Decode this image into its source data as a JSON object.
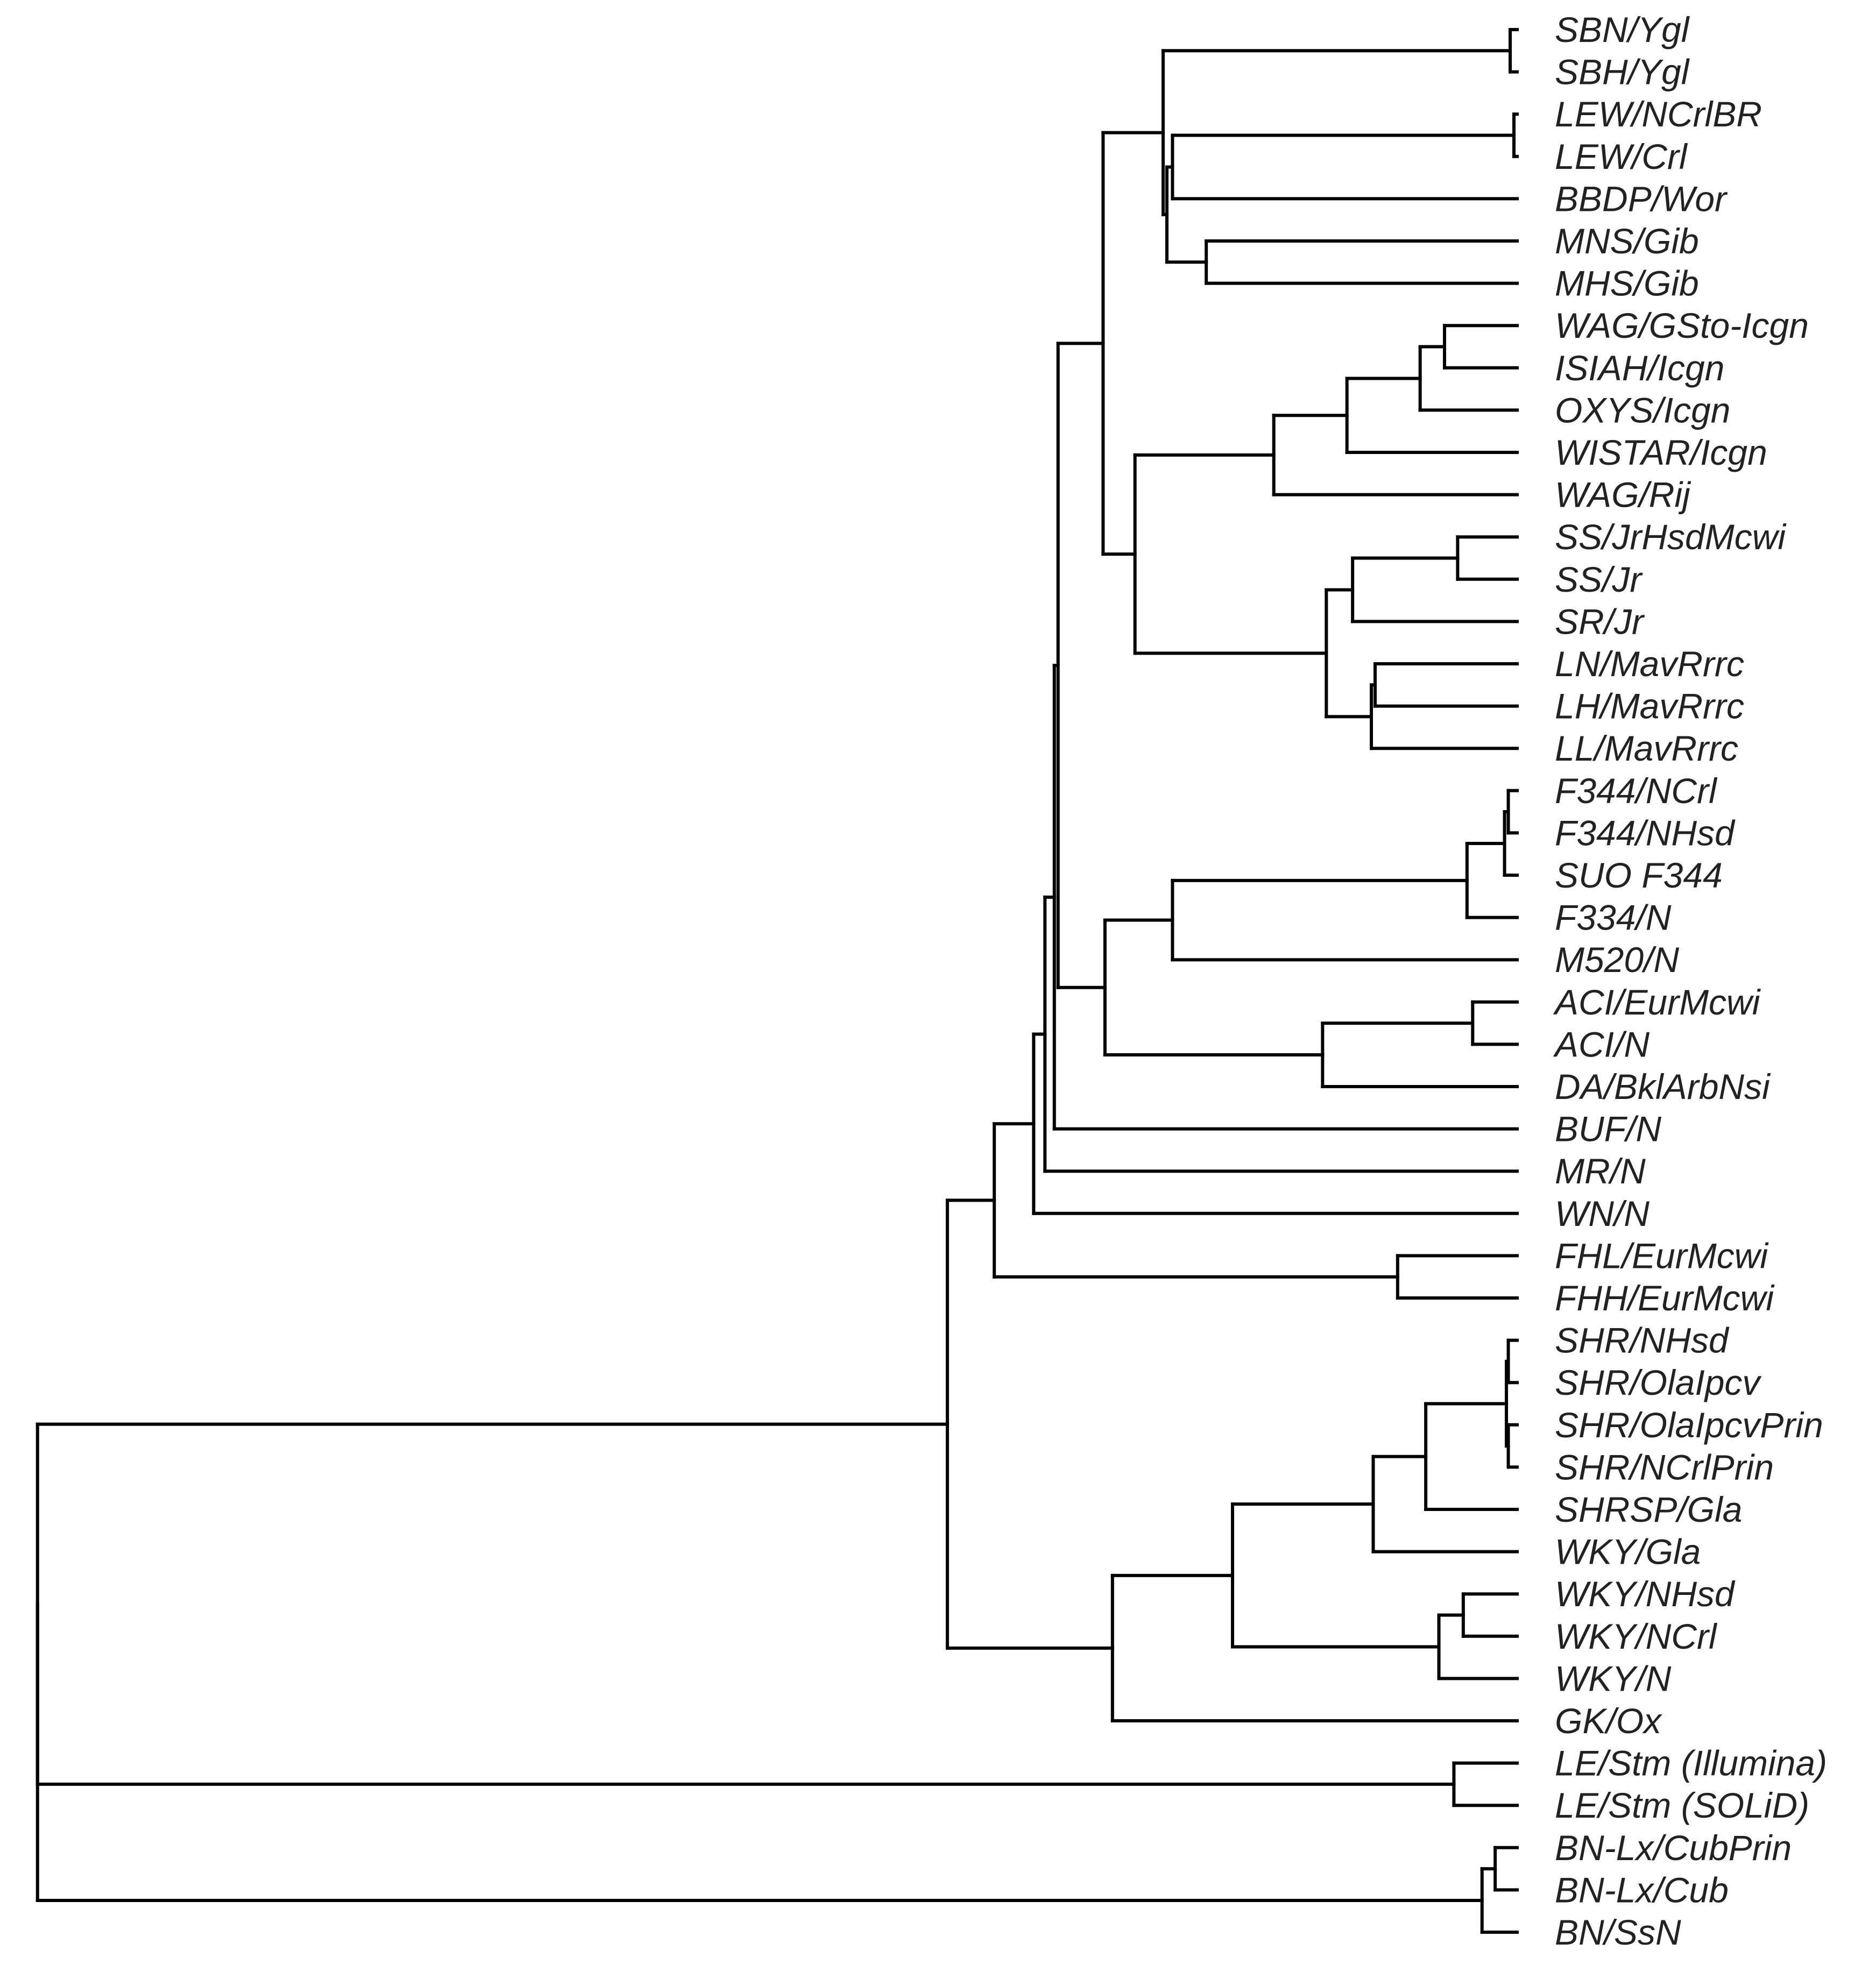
{
  "figure": {
    "type": "dendrogram",
    "orientation": "root-left, leaves-right"
  },
  "leaves": [
    "SBN/Ygl",
    "SBH/Ygl",
    "LEW/NCrlBR",
    "LEW/Crl",
    "BBDP/Wor",
    "MNS/Gib",
    "MHS/Gib",
    "WAG/GSto-Icgn",
    "ISIAH/Icgn",
    "OXYS/Icgn",
    "WISTAR/Icgn",
    "WAG/Rij",
    "SS/JrHsdMcwi",
    "SS/Jr",
    "SR/Jr",
    "LN/MavRrrc",
    "LH/MavRrrc",
    "LL/MavRrrc",
    "F344/NCrl",
    "F344/NHsd",
    "SUO F344",
    "F334/N",
    "M520/N",
    "ACI/EurMcwi",
    "ACI/N",
    "DA/BklArbNsi",
    "BUF/N",
    "MR/N",
    "WN/N",
    "FHL/EurMcwi",
    "FHH/EurMcwi",
    "SHR/NHsd",
    "SHR/OlaIpcv",
    "SHR/OlaIpcvPrin",
    "SHR/NCrlPrin",
    "SHRSP/Gla",
    "WKY/Gla",
    "WKY/NHsd",
    "WKY/NCrl",
    "WKY/N",
    "GK/Ox",
    "LE/Stm (Illumina)",
    "LE/Stm (SOLiD)",
    "BN-Lx/CubPrin",
    "BN-Lx/Cub",
    "BN/SsN"
  ],
  "tree": {
    "h": 0.02,
    "children": [
      {
        "h": 0.505,
        "children": [
          {
            "h": 0.53,
            "children": [
              {
                "h": 0.551,
                "children": [
                  {
                    "h": 0.557,
                    "children": [
                      {
                        "h": 0.562,
                        "children": [
                          {
                            "h": 0.564,
                            "children": [
                              {
                                "h": 0.588,
                                "children": [
                                  {
                                    "h": 0.62,
                                    "children": [
                                      {
                                        "h": 0.805,
                                        "children": [
                                          {
                                            "leaf": 0
                                          },
                                          {
                                            "leaf": 1
                                          }
                                        ]
                                      },
                                      {
                                        "h": 0.622,
                                        "children": [
                                          {
                                            "h": 0.625,
                                            "children": [
                                              {
                                                "h": 0.807,
                                                "children": [
                                                  {
                                                    "leaf": 2
                                                  },
                                                  {
                                                    "leaf": 3
                                                  }
                                                ]
                                              },
                                              {
                                                "leaf": 4
                                              }
                                            ]
                                          },
                                          {
                                            "h": 0.643,
                                            "children": [
                                              {
                                                "leaf": 5
                                              },
                                              {
                                                "leaf": 6
                                              }
                                            ]
                                          }
                                        ]
                                      }
                                    ]
                                  },
                                  {
                                    "h": 0.605,
                                    "children": [
                                      {
                                        "h": 0.679,
                                        "children": [
                                          {
                                            "h": 0.718,
                                            "children": [
                                              {
                                                "h": 0.757,
                                                "children": [
                                                  {
                                                    "h": 0.77,
                                                    "children": [
                                                      {
                                                        "leaf": 7
                                                      },
                                                      {
                                                        "leaf": 8
                                                      }
                                                    ]
                                                  },
                                                  {
                                                    "leaf": 9
                                                  }
                                                ]
                                              },
                                              {
                                                "leaf": 10
                                              }
                                            ]
                                          },
                                          {
                                            "leaf": 11
                                          }
                                        ]
                                      },
                                      {
                                        "h": 0.707,
                                        "children": [
                                          {
                                            "h": 0.721,
                                            "children": [
                                              {
                                                "h": 0.777,
                                                "children": [
                                                  {
                                                    "leaf": 12
                                                  },
                                                  {
                                                    "leaf": 13
                                                  }
                                                ]
                                              },
                                              {
                                                "leaf": 14
                                              }
                                            ]
                                          },
                                          {
                                            "h": 0.731,
                                            "children": [
                                              {
                                                "h": 0.733,
                                                "children": [
                                                  {
                                                    "leaf": 15
                                                  },
                                                  {
                                                    "leaf": 16
                                                  }
                                                ]
                                              },
                                              {
                                                "leaf": 17
                                              }
                                            ]
                                          }
                                        ]
                                      }
                                    ]
                                  }
                                ]
                              },
                              {
                                "h": 0.589,
                                "children": [
                                  {
                                    "h": 0.625,
                                    "children": [
                                      {
                                        "h": 0.782,
                                        "children": [
                                          {
                                            "h": 0.802,
                                            "children": [
                                              {
                                                "h": 0.804,
                                                "children": [
                                                  {
                                                    "leaf": 18
                                                  },
                                                  {
                                                    "leaf": 19
                                                  }
                                                ]
                                              },
                                              {
                                                "leaf": 20
                                              }
                                            ]
                                          },
                                          {
                                            "leaf": 21
                                          }
                                        ]
                                      },
                                      {
                                        "leaf": 22
                                      }
                                    ]
                                  },
                                  {
                                    "h": 0.705,
                                    "children": [
                                      {
                                        "h": 0.785,
                                        "children": [
                                          {
                                            "leaf": 23
                                          },
                                          {
                                            "leaf": 24
                                          }
                                        ]
                                      },
                                      {
                                        "leaf": 25
                                      }
                                    ]
                                  }
                                ]
                              }
                            ]
                          },
                          {
                            "leaf": 26
                          }
                        ]
                      },
                      {
                        "leaf": 27
                      }
                    ]
                  },
                  {
                    "leaf": 28
                  }
                ]
              },
              {
                "h": 0.745,
                "children": [
                  {
                    "leaf": 29
                  },
                  {
                    "leaf": 30
                  }
                ]
              }
            ]
          },
          {
            "h": 0.593,
            "children": [
              {
                "h": 0.657,
                "children": [
                  {
                    "h": 0.732,
                    "children": [
                      {
                        "h": 0.76,
                        "children": [
                          {
                            "h": 0.803,
                            "children": [
                              {
                                "h": 0.804,
                                "children": [
                                  {
                                    "leaf": 31
                                  },
                                  {
                                    "leaf": 32
                                  }
                                ]
                              },
                              {
                                "h": 0.804,
                                "children": [
                                  {
                                    "leaf": 33
                                  },
                                  {
                                    "leaf": 34
                                  }
                                ]
                              }
                            ]
                          },
                          {
                            "leaf": 35
                          }
                        ]
                      },
                      {
                        "leaf": 36
                      }
                    ]
                  },
                  {
                    "h": 0.767,
                    "children": [
                      {
                        "h": 0.78,
                        "children": [
                          {
                            "leaf": 37
                          },
                          {
                            "leaf": 38
                          }
                        ]
                      },
                      {
                        "leaf": 39
                      }
                    ]
                  }
                ]
              },
              {
                "leaf": 40
              }
            ]
          }
        ]
      },
      {
        "h": 0.775,
        "children": [
          {
            "leaf": 41
          },
          {
            "leaf": 42
          }
        ]
      }
    ]
  },
  "outgroup": {
    "h": 0.79,
    "children": [
      {
        "h": 0.797,
        "children": [
          {
            "leaf": 43
          },
          {
            "leaf": 44
          }
        ]
      },
      {
        "leaf": 45
      }
    ]
  }
}
